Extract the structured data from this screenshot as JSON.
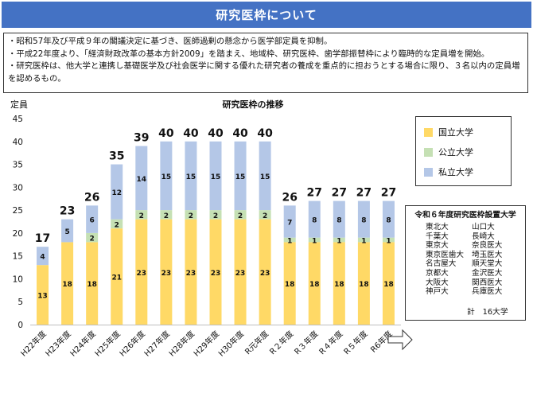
{
  "header": {
    "title": "研究医枠について"
  },
  "notes": [
    "・昭和57年及び平成９年の閣議決定に基づき、医師過剰の懸念から医学部定員を抑制。",
    "・平成22年度より、「経済財政改革の基本方針2009」を踏まえ、地域枠、研究医枠、歯学部振替枠により臨時的な定員増を開始。",
    "・研究医枠は、他大学と連携し基礎医学及び社会医学に関する優れた研究者の養成を重点的に担おうとする場合に限り、３名以内の定員増を認めるもの。"
  ],
  "chart_data": {
    "type": "bar",
    "stacked": true,
    "title": "研究医枠の推移",
    "ylabel": "定員",
    "xlabel": "",
    "ylim": [
      0,
      45
    ],
    "yticks": [
      0,
      5,
      10,
      15,
      20,
      25,
      30,
      35,
      40,
      45
    ],
    "categories": [
      "H22年度",
      "H23年度",
      "H24年度",
      "H25年度",
      "H26年度",
      "H27年度",
      "H28年度",
      "H29年度",
      "H30年度",
      "R元年度",
      "R２年度",
      "R３年度",
      "R４年度",
      "R５年度",
      "R6年度"
    ],
    "series": [
      {
        "name": "国立大学",
        "color": "#ffd966",
        "values": [
          13,
          18,
          18,
          21,
          23,
          23,
          23,
          23,
          23,
          23,
          18,
          18,
          18,
          18,
          18
        ]
      },
      {
        "name": "公立大学",
        "color": "#c5e0b4",
        "values": [
          0,
          0,
          2,
          2,
          2,
          2,
          2,
          2,
          2,
          2,
          1,
          1,
          1,
          1,
          1
        ]
      },
      {
        "name": "私立大学",
        "color": "#b4c7e7",
        "values": [
          4,
          5,
          6,
          12,
          14,
          15,
          15,
          15,
          15,
          15,
          7,
          8,
          8,
          8,
          8
        ]
      }
    ],
    "totals": [
      17,
      23,
      26,
      35,
      39,
      40,
      40,
      40,
      40,
      40,
      26,
      27,
      27,
      27,
      27
    ],
    "legend_position": "top-right",
    "grid": false
  },
  "institutions": {
    "title": "令和６年度研究医枠設置大学",
    "rows": [
      [
        "東北大",
        "山口大"
      ],
      [
        "千葉大",
        "長崎大"
      ],
      [
        "東京大",
        "奈良医大"
      ],
      [
        "東京医歯大",
        "埼玉医大"
      ],
      [
        "名古屋大",
        "順天堂大"
      ],
      [
        "京都大",
        "金沢医大"
      ],
      [
        "大阪大",
        "関西医大"
      ],
      [
        "神戸大",
        "兵庫医大"
      ]
    ],
    "total": "計　16大学"
  }
}
